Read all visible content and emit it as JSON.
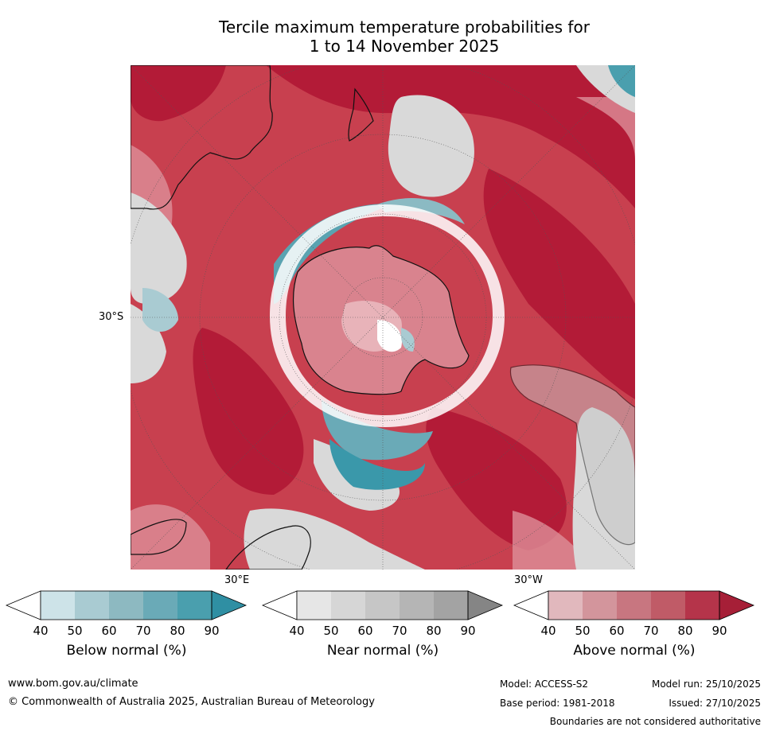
{
  "title": {
    "line1": "Tercile maximum temperature probabilities for",
    "line2": "1 to 14 November 2025"
  },
  "map": {
    "labels": {
      "lat": "30°S",
      "lon_east": "30°E",
      "lon_west": "30°W"
    },
    "colors": {
      "ocean_warm": "#c93b4f",
      "ocean_hot": "#b31b37",
      "near": "#d9d9d9",
      "cool": "#8bbac3",
      "cool_deep": "#3a98aa",
      "white": "#ffffff",
      "coast": "#111111"
    }
  },
  "legends": [
    {
      "title": "Below normal (%)",
      "ticks": [
        "40",
        "50",
        "60",
        "70",
        "80",
        "90"
      ],
      "colors": [
        "#ffffff",
        "#cde3e8",
        "#a9cbd2",
        "#8db9c1",
        "#6aaab7",
        "#4a9fae",
        "#2f8fa3"
      ]
    },
    {
      "title": "Near normal (%)",
      "ticks": [
        "40",
        "50",
        "60",
        "70",
        "80",
        "90"
      ],
      "colors": [
        "#ffffff",
        "#e6e6e6",
        "#d6d6d6",
        "#c6c6c6",
        "#b5b5b5",
        "#a3a3a3",
        "#858585"
      ]
    },
    {
      "title": "Above normal (%)",
      "ticks": [
        "40",
        "50",
        "60",
        "70",
        "80",
        "90"
      ],
      "colors": [
        "#ffffff",
        "#e1b8bd",
        "#d3959c",
        "#c87680",
        "#c05b67",
        "#b5344a",
        "#a61f37"
      ]
    }
  ],
  "footer": {
    "website": "www.bom.gov.au/climate",
    "copyright": "© Commonwealth of Australia 2025, Australian Bureau of Meteorology",
    "model": "Model: ACCESS-S2",
    "base_period": "Base period: 1981-2018",
    "model_run": "Model run: 25/10/2025",
    "issued": "Issued: 27/10/2025",
    "disclaimer": "Boundaries are not considered authoritative"
  }
}
